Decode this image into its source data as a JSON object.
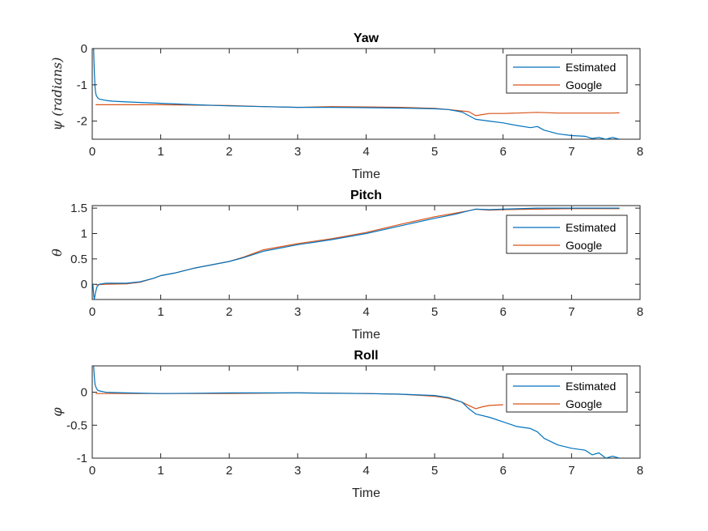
{
  "chart_data": [
    {
      "type": "line",
      "title": "Yaw",
      "xlabel": "Time",
      "ylabel": "ψ (radians)",
      "xlim": [
        0,
        8
      ],
      "ylim": [
        -2.5,
        0
      ],
      "xticks": [
        0,
        1,
        2,
        3,
        4,
        5,
        6,
        7,
        8
      ],
      "yticks": [
        0,
        -1,
        -2
      ],
      "ytick_labels": [
        "0",
        "-1",
        "-2"
      ],
      "legend_position": "top-right",
      "grid": false,
      "series": [
        {
          "name": "Estimated",
          "color": "#0072BD",
          "x": [
            0.02,
            0.03,
            0.04,
            0.05,
            0.06,
            0.08,
            0.1,
            0.15,
            0.2,
            0.3,
            0.5,
            1.0,
            1.5,
            2.0,
            2.5,
            3.0,
            3.5,
            4.0,
            4.5,
            5.0,
            5.2,
            5.4,
            5.5,
            5.6,
            5.8,
            6.0,
            6.2,
            6.4,
            6.5,
            6.6,
            6.8,
            7.0,
            7.2,
            7.3,
            7.4,
            7.5,
            7.6,
            7.7
          ],
          "y": [
            0,
            -0.6,
            -1.05,
            -1.22,
            -1.3,
            -1.36,
            -1.39,
            -1.41,
            -1.43,
            -1.45,
            -1.47,
            -1.51,
            -1.55,
            -1.58,
            -1.6,
            -1.62,
            -1.62,
            -1.63,
            -1.64,
            -1.66,
            -1.68,
            -1.75,
            -1.85,
            -1.95,
            -2.0,
            -2.05,
            -2.12,
            -2.18,
            -2.15,
            -2.25,
            -2.35,
            -2.4,
            -2.42,
            -2.48,
            -2.45,
            -2.5,
            -2.45,
            -2.5
          ]
        },
        {
          "name": "Google",
          "color": "#D95319",
          "x": [
            0.05,
            0.5,
            1.0,
            1.5,
            2.0,
            2.5,
            3.0,
            3.5,
            4.0,
            4.5,
            5.0,
            5.2,
            5.4,
            5.5,
            5.6,
            5.7,
            5.8,
            6.0,
            6.2,
            6.5,
            6.8,
            7.0,
            7.3,
            7.6,
            7.7
          ],
          "y": [
            -1.55,
            -1.55,
            -1.55,
            -1.56,
            -1.57,
            -1.6,
            -1.62,
            -1.6,
            -1.61,
            -1.62,
            -1.65,
            -1.68,
            -1.72,
            -1.74,
            -1.85,
            -1.82,
            -1.79,
            -1.79,
            -1.78,
            -1.76,
            -1.78,
            -1.78,
            -1.78,
            -1.78,
            -1.77
          ]
        }
      ]
    },
    {
      "type": "line",
      "title": "Pitch",
      "xlabel": "Time",
      "ylabel": "θ",
      "xlim": [
        0,
        8
      ],
      "ylim": [
        -0.3,
        1.55
      ],
      "xticks": [
        0,
        1,
        2,
        3,
        4,
        5,
        6,
        7,
        8
      ],
      "yticks": [
        1.5,
        1,
        0.5,
        0
      ],
      "ytick_labels": [
        "1.5",
        "1",
        "0.5",
        "0"
      ],
      "legend_position": "top-right",
      "grid": false,
      "series": [
        {
          "name": "Estimated",
          "color": "#0072BD",
          "x": [
            0.01,
            0.02,
            0.03,
            0.05,
            0.07,
            0.1,
            0.2,
            0.5,
            0.7,
            0.9,
            1.0,
            1.2,
            1.5,
            2.0,
            2.2,
            2.5,
            3.0,
            3.5,
            4.0,
            4.5,
            5.0,
            5.3,
            5.5,
            5.6,
            5.8,
            6.0,
            6.5,
            7.0,
            7.5,
            7.7
          ],
          "y": [
            0,
            -0.2,
            -0.3,
            -0.15,
            -0.05,
            0,
            0.02,
            0.02,
            0.05,
            0.12,
            0.17,
            0.22,
            0.32,
            0.45,
            0.52,
            0.65,
            0.78,
            0.88,
            1.0,
            1.15,
            1.3,
            1.38,
            1.45,
            1.48,
            1.47,
            1.48,
            1.5,
            1.5,
            1.5,
            1.5
          ]
        },
        {
          "name": "Google",
          "color": "#D95319",
          "x": [
            0.05,
            0.2,
            0.5,
            0.7,
            0.9,
            1.0,
            1.2,
            1.5,
            2.0,
            2.2,
            2.5,
            3.0,
            3.5,
            4.0,
            4.5,
            5.0,
            5.3,
            5.5,
            5.6,
            5.8,
            6.0,
            6.5,
            7.0,
            7.5,
            7.7
          ],
          "y": [
            -0.01,
            0,
            0.01,
            0.04,
            0.12,
            0.17,
            0.22,
            0.32,
            0.45,
            0.53,
            0.68,
            0.8,
            0.9,
            1.02,
            1.18,
            1.33,
            1.4,
            1.45,
            1.48,
            1.46,
            1.47,
            1.48,
            1.49,
            1.49,
            1.49
          ]
        }
      ]
    },
    {
      "type": "line",
      "title": "Roll",
      "xlabel": "Time",
      "ylabel": "φ",
      "xlim": [
        0,
        8
      ],
      "ylim": [
        -1,
        0.4
      ],
      "xticks": [
        0,
        1,
        2,
        3,
        4,
        5,
        6,
        7,
        8
      ],
      "yticks": [
        0,
        -0.5,
        -1
      ],
      "ytick_labels": [
        "0",
        "-0.5",
        "-1"
      ],
      "legend_position": "top-right",
      "grid": false,
      "series": [
        {
          "name": "Estimated",
          "color": "#0072BD",
          "x": [
            0.02,
            0.03,
            0.04,
            0.06,
            0.08,
            0.1,
            0.2,
            0.5,
            1.0,
            2.0,
            3.0,
            4.0,
            4.5,
            5.0,
            5.2,
            5.4,
            5.5,
            5.6,
            5.8,
            6.0,
            6.2,
            6.4,
            6.5,
            6.6,
            6.8,
            7.0,
            7.2,
            7.3,
            7.4,
            7.5,
            7.6,
            7.7
          ],
          "y": [
            0.4,
            0.25,
            0.12,
            0.06,
            0.03,
            0.02,
            0,
            -0.01,
            -0.02,
            -0.01,
            -0.01,
            -0.02,
            -0.03,
            -0.05,
            -0.08,
            -0.15,
            -0.25,
            -0.33,
            -0.38,
            -0.45,
            -0.52,
            -0.55,
            -0.6,
            -0.7,
            -0.8,
            -0.85,
            -0.88,
            -0.95,
            -0.92,
            -1.0,
            -0.97,
            -1.0
          ]
        },
        {
          "name": "Google",
          "color": "#D95319",
          "x": [
            0.05,
            0.5,
            1.0,
            2.0,
            3.0,
            4.0,
            4.5,
            5.0,
            5.2,
            5.4,
            5.5,
            5.6,
            5.7,
            5.8,
            6.0
          ],
          "y": [
            -0.02,
            -0.02,
            -0.02,
            -0.02,
            -0.01,
            -0.02,
            -0.03,
            -0.06,
            -0.09,
            -0.15,
            -0.2,
            -0.25,
            -0.22,
            -0.2,
            -0.19
          ]
        }
      ]
    }
  ]
}
